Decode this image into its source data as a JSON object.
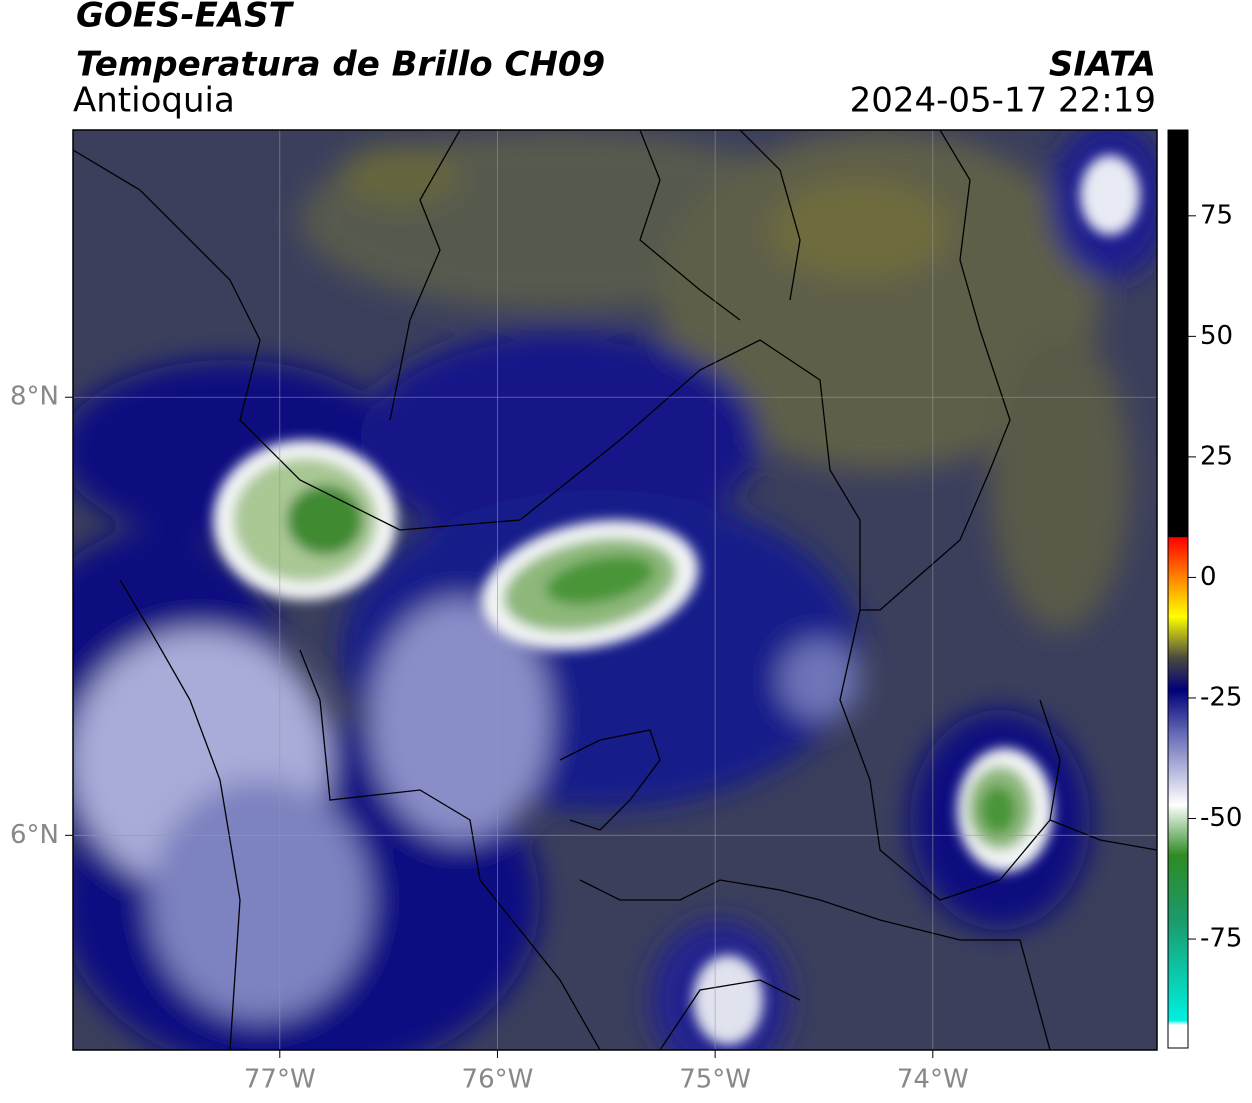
{
  "header": {
    "title": "GOES-EAST",
    "subtitle": "Temperatura de Brillo CH09",
    "region": "Antioquia",
    "source": "SIATA",
    "datetime": "2024-05-17 22:19"
  },
  "map": {
    "xlim": [
      -77.95,
      -72.97
    ],
    "ylim": [
      5.02,
      9.22
    ],
    "xticks": [
      {
        "value": -77,
        "label": "77°W"
      },
      {
        "value": -76,
        "label": "76°W"
      },
      {
        "value": -75,
        "label": "75°W"
      },
      {
        "value": -74,
        "label": "74°W"
      }
    ],
    "yticks": [
      {
        "value": 8,
        "label": "8°N"
      },
      {
        "value": 6,
        "label": "6°N"
      }
    ]
  },
  "colorbar": {
    "lim": [
      -97.6,
      92.8
    ],
    "ticks": [
      75,
      50,
      25,
      0,
      -25,
      -50,
      -75
    ]
  }
}
